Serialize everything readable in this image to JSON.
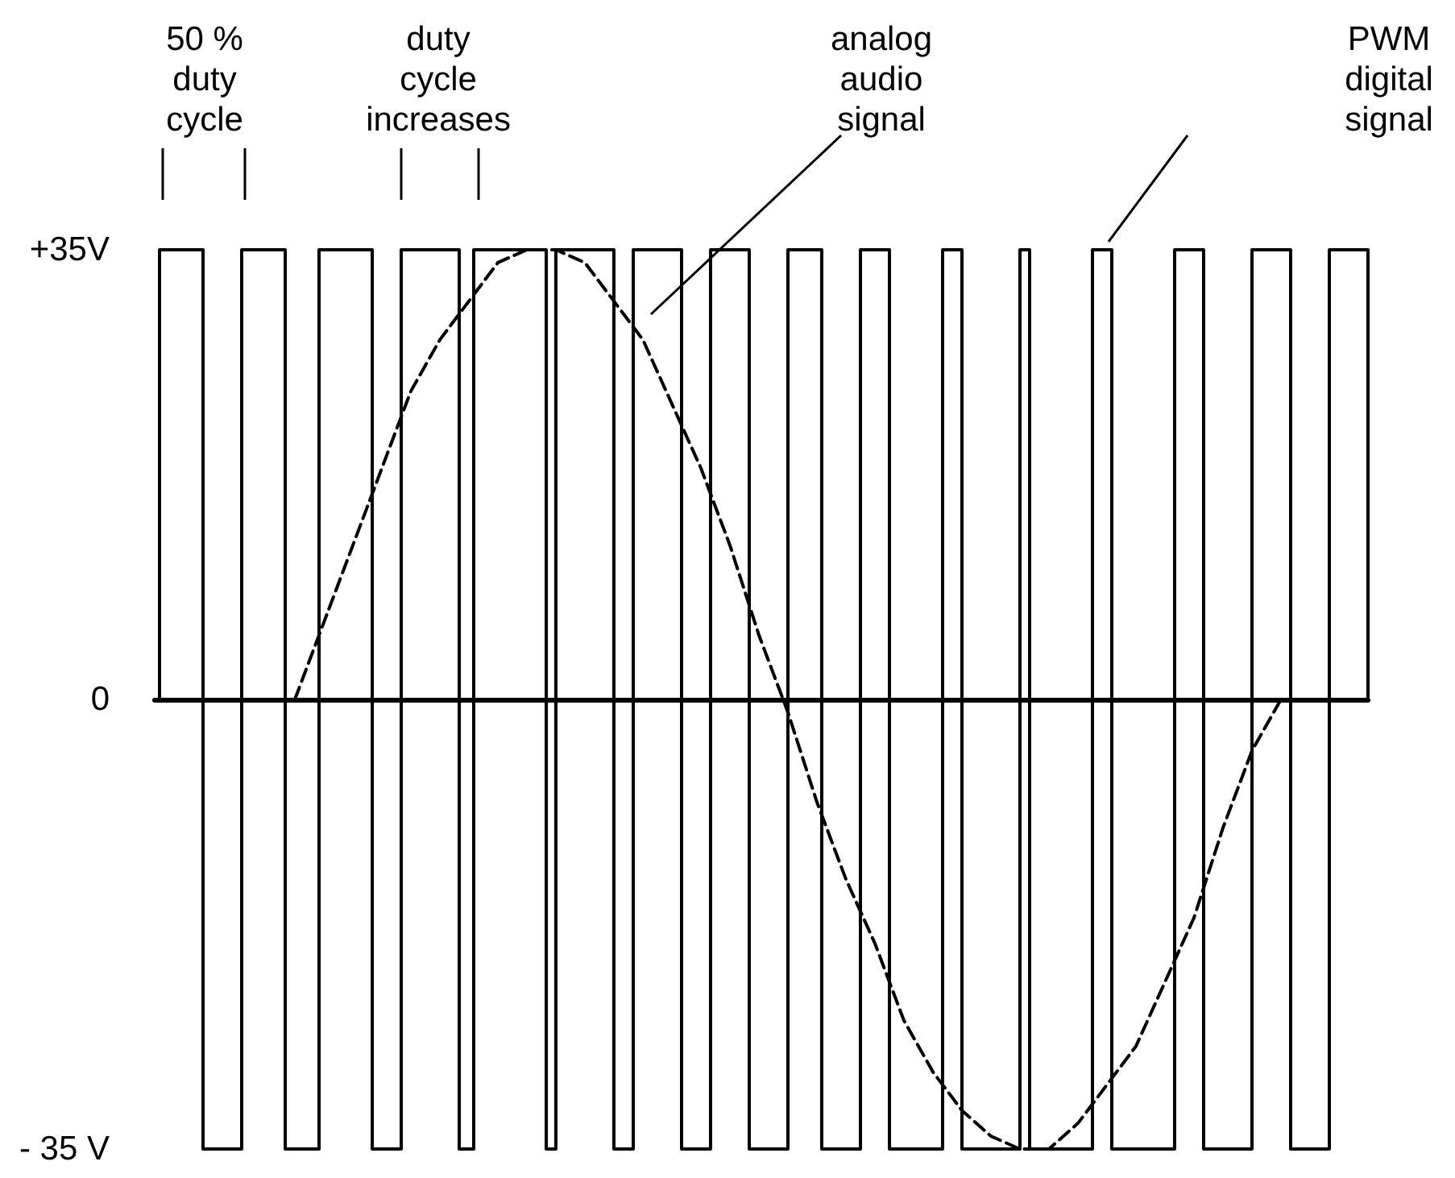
{
  "chart_data": {
    "type": "step",
    "categories": [
      null,
      null,
      null,
      null,
      null,
      null,
      null,
      null,
      null,
      null,
      null,
      null,
      null,
      null,
      null,
      null,
      null,
      null,
      null,
      null,
      null,
      null,
      null,
      null,
      null,
      null,
      null,
      null,
      null,
      null,
      null,
      null,
      null,
      null,
      null,
      null,
      null,
      null,
      null,
      null,
      null,
      null,
      null,
      null,
      null,
      null,
      null,
      null,
      null,
      null,
      null,
      null,
      null,
      null,
      null,
      null,
      null,
      null,
      null,
      null,
      null,
      null,
      null,
      null,
      null,
      null,
      null,
      null,
      null,
      null,
      null,
      null,
      null,
      null,
      null,
      null,
      null,
      null,
      null,
      null,
      null,
      null,
      null,
      null,
      null,
      null,
      null,
      null,
      null,
      null,
      null,
      null,
      null,
      null,
      null,
      null,
      null,
      null,
      null,
      null,
      null,
      null,
      null,
      null,
      null,
      null,
      null,
      null,
      null,
      null,
      null,
      null,
      null,
      null,
      null,
      null,
      null,
      null,
      null,
      null,
      null,
      null,
      null,
      null,
      null,
      null,
      null,
      null,
      null,
      null,
      null,
      null,
      null,
      null,
      null,
      null,
      null,
      null,
      null,
      null,
      null,
      null,
      null,
      null,
      null,
      null,
      null,
      null,
      null,
      null,
      null,
      null,
      null,
      null,
      null,
      null,
      null,
      null,
      null,
      null,
      null,
      null,
      null,
      null,
      null,
      null,
      null,
      null,
      null,
      null,
      null,
      null,
      null,
      null,
      null,
      null,
      null,
      null,
      null,
      null,
      null,
      null,
      null,
      null,
      null,
      null,
      null,
      null,
      null,
      null,
      null,
      null,
      null,
      null,
      null,
      null,
      null,
      null,
      null,
      null,
      null,
      null,
      null,
      null,
      null,
      null,
      null,
      null,
      null,
      null,
      null,
      null,
      null,
      null,
      null,
      null,
      null,
      null,
      null,
      null,
      null,
      null,
      null,
      null,
      null,
      null,
      null,
      null,
      null,
      null,
      null,
      null,
      null,
      null,
      null,
      null,
      null,
      null,
      null,
      null,
      null,
      null,
      null,
      null,
      null,
      null,
      null,
      null,
      null,
      null,
      null,
      null
    ],
    "series": [
      {
        "color": "#000000",
        "values": [
          0,
          35,
          35,
          35,
          35,
          35,
          35,
          35,
          35,
          35,
          -35,
          -35,
          -35,
          -35,
          -35,
          -35,
          -35,
          -35,
          35,
          35,
          35,
          35,
          35,
          35,
          35,
          35,
          35,
          -35,
          -35,
          -35,
          -35,
          -35,
          -35,
          -35,
          35,
          35,
          35,
          35,
          35,
          35,
          35,
          35,
          35,
          35,
          35,
          -35,
          -35,
          -35,
          -35,
          -35,
          -35,
          35,
          35,
          35,
          35,
          35,
          35,
          35,
          35,
          35,
          35,
          35,
          35,
          -35,
          -35,
          -35,
          35,
          35,
          35,
          35,
          35,
          35,
          35,
          35,
          35,
          35,
          35,
          35,
          35,
          35,
          35,
          -35,
          -35,
          35,
          35,
          35,
          35,
          35,
          35,
          35,
          35,
          35,
          35,
          35,
          35,
          -35,
          -35,
          -35,
          -35,
          35,
          35,
          35,
          35,
          35,
          35,
          35,
          35,
          35,
          35,
          -35,
          -35,
          -35,
          -35,
          -35,
          -35,
          35,
          35,
          35,
          35,
          35,
          35,
          35,
          35,
          -35,
          -35,
          -35,
          -35,
          -35,
          -35,
          -35,
          -35,
          35,
          35,
          35,
          35,
          35,
          35,
          35,
          -35,
          -35,
          -35,
          -35,
          -35,
          -35,
          -35,
          -35,
          35,
          35,
          35,
          35,
          35,
          35,
          -35,
          -35,
          -35,
          -35,
          -35,
          -35,
          -35,
          -35,
          -35,
          -35,
          -35,
          35,
          35,
          35,
          35,
          -35,
          -35,
          -35,
          -35,
          -35,
          -35,
          -35,
          -35,
          -35,
          -35,
          -35,
          -35,
          35,
          35,
          -35,
          -35,
          -35,
          -35,
          -35,
          -35,
          -35,
          -35,
          -35,
          -35,
          -35,
          -35,
          -35,
          35,
          35,
          35,
          35,
          -35,
          -35,
          -35,
          -35,
          -35,
          -35,
          -35,
          -35,
          -35,
          -35,
          -35,
          -35,
          -35,
          35,
          35,
          35,
          35,
          35,
          35,
          -35,
          -35,
          -35,
          -35,
          -35,
          -35,
          -35,
          -35,
          -35,
          -35,
          35,
          35,
          35,
          35,
          35,
          35,
          35,
          35,
          -35,
          -35,
          -35,
          -35,
          -35,
          -35,
          -35,
          -35,
          35,
          35,
          35,
          35,
          35,
          35,
          35,
          35,
          0
        ]
      },
      {
        "type": "line",
        "color": "#000000",
        "line_style": "dashed",
        "values": [
          null,
          null,
          null,
          null,
          null,
          null,
          null,
          null,
          null,
          null,
          null,
          null,
          null,
          null,
          null,
          null,
          null,
          null,
          null,
          null,
          null,
          null,
          null,
          null,
          null,
          null,
          null,
          null,
          null,
          0,
          null,
          null,
          null,
          null,
          null,
          6,
          null,
          null,
          null,
          null,
          null,
          12,
          null,
          null,
          null,
          null,
          null,
          18,
          null,
          null,
          null,
          null,
          null,
          24,
          null,
          null,
          null,
          null,
          null,
          28,
          null,
          null,
          null,
          null,
          null,
          31,
          null,
          null,
          null,
          null,
          null,
          34,
          null,
          null,
          null,
          null,
          null,
          35,
          null,
          null,
          null,
          null,
          null,
          35,
          null,
          null,
          null,
          null,
          null,
          34,
          null,
          null,
          null,
          null,
          null,
          31,
          null,
          null,
          null,
          null,
          null,
          28,
          null,
          null,
          null,
          null,
          null,
          23,
          null,
          null,
          null,
          null,
          null,
          18,
          null,
          null,
          null,
          null,
          null,
          12,
          null,
          null,
          null,
          null,
          null,
          5,
          null,
          null,
          null,
          null,
          null,
          -1,
          null,
          null,
          null,
          null,
          null,
          -8,
          null,
          null,
          null,
          null,
          null,
          -14,
          null,
          null,
          null,
          null,
          null,
          -19,
          null,
          null,
          null,
          null,
          null,
          -25,
          null,
          null,
          null,
          null,
          null,
          -29,
          null,
          null,
          null,
          null,
          null,
          -32,
          null,
          null,
          null,
          null,
          null,
          -34,
          null,
          null,
          null,
          null,
          null,
          -35,
          null,
          null,
          null,
          null,
          null,
          -35,
          null,
          null,
          null,
          null,
          null,
          -33,
          null,
          null,
          null,
          null,
          null,
          -30,
          null,
          null,
          null,
          null,
          null,
          -27,
          null,
          null,
          null,
          null,
          null,
          -22,
          null,
          null,
          null,
          null,
          null,
          -17,
          null,
          null,
          null,
          null,
          null,
          -10,
          null,
          null,
          null,
          null,
          null,
          -4,
          null,
          null,
          null,
          null,
          null,
          0,
          null,
          null,
          null,
          null,
          null,
          null,
          null,
          null,
          null,
          null,
          null,
          null,
          null,
          null,
          null,
          null,
          null,
          null
        ]
      }
    ],
    "ylim": [
      -35,
      35
    ],
    "yticks": [
      {
        "value": -35,
        "label": "- 35 V"
      },
      0,
      {
        "value": 35,
        "label": "+35V"
      }
    ],
    "annotations": [
      "50 % duty cycle",
      "duty cycle increases",
      "analog audio signal",
      "PWM digital signal"
    ]
  }
}
